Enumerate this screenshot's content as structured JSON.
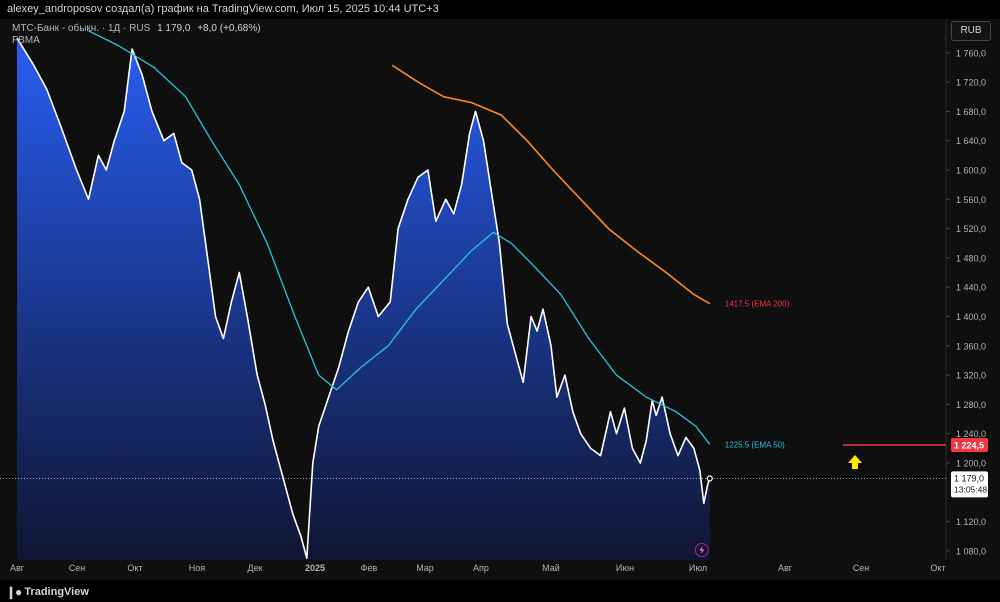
{
  "header": {
    "author_line": "alexey_androposov создал(а) график на TradingView.com, Июл 15, 2025 10:44 UTC+3"
  },
  "legend": {
    "symbol_line": "МТС-Банк - обыкн. · 1Д · RUS",
    "last_price": "1 179,0",
    "change": "+8,0 (+0,68%)",
    "ticker": "FBMA"
  },
  "currency_button": "RUB",
  "branding": {
    "name": "TradingView",
    "logo_icon": "tradingview-logo-icon"
  },
  "colors": {
    "price_line": "#ffffff",
    "area_top": "#2962ff",
    "area_bottom": "#0f1637",
    "ema50": "#26c6da",
    "ema200": "#ff8a1f",
    "annotation_line": "#f23645",
    "arrow": "#ffea00",
    "last_price_label": "#ffffff"
  },
  "chart_data": {
    "type": "area",
    "x_axis_labels": [
      "Авг",
      "Сен",
      "Окт",
      "Ноя",
      "Дек",
      "2025",
      "Фев",
      "Мар",
      "Апр",
      "Май",
      "Июн",
      "Июл",
      "Авг",
      "Сен",
      "Окт"
    ],
    "y_axis_ticks": [
      "1 760,0",
      "1 720,0",
      "1 680,0",
      "1 640,0",
      "1 600,0",
      "1 560,0",
      "1 520,0",
      "1 480,0",
      "1 440,0",
      "1 400,0",
      "1 360,0",
      "1 320,0",
      "1 280,0",
      "1 240,0",
      "1 200,0",
      "1 120,0",
      "1 080,0"
    ],
    "ylim": [
      1070,
      1785
    ],
    "grid": false,
    "series": [
      {
        "name": "МТС-Банк - обыкн.",
        "points": [
          [
            "2024-07-31",
            1780
          ],
          [
            "2024-08-08",
            1745
          ],
          [
            "2024-08-15",
            1710
          ],
          [
            "2024-08-22",
            1660
          ],
          [
            "2024-08-30",
            1600
          ],
          [
            "2024-09-05",
            1560
          ],
          [
            "2024-09-10",
            1620
          ],
          [
            "2024-09-14",
            1600
          ],
          [
            "2024-09-18",
            1640
          ],
          [
            "2024-09-23",
            1680
          ],
          [
            "2024-09-27",
            1765
          ],
          [
            "2024-10-02",
            1730
          ],
          [
            "2024-10-07",
            1680
          ],
          [
            "2024-10-13",
            1640
          ],
          [
            "2024-10-18",
            1650
          ],
          [
            "2024-10-22",
            1610
          ],
          [
            "2024-10-27",
            1600
          ],
          [
            "2024-10-31",
            1560
          ],
          [
            "2024-11-04",
            1480
          ],
          [
            "2024-11-08",
            1400
          ],
          [
            "2024-11-12",
            1370
          ],
          [
            "2024-11-16",
            1420
          ],
          [
            "2024-11-20",
            1460
          ],
          [
            "2024-11-24",
            1400
          ],
          [
            "2024-11-29",
            1320
          ],
          [
            "2024-12-03",
            1280
          ],
          [
            "2024-12-07",
            1230
          ],
          [
            "2024-12-12",
            1180
          ],
          [
            "2024-12-17",
            1130
          ],
          [
            "2024-12-21",
            1100
          ],
          [
            "2024-12-24",
            1070
          ],
          [
            "2024-12-27",
            1200
          ],
          [
            "2024-12-30",
            1250
          ],
          [
            "2025-01-04",
            1290
          ],
          [
            "2025-01-09",
            1330
          ],
          [
            "2025-01-14",
            1380
          ],
          [
            "2025-01-19",
            1420
          ],
          [
            "2025-01-24",
            1440
          ],
          [
            "2025-01-29",
            1400
          ],
          [
            "2025-02-04",
            1420
          ],
          [
            "2025-02-08",
            1520
          ],
          [
            "2025-02-13",
            1560
          ],
          [
            "2025-02-18",
            1590
          ],
          [
            "2025-02-23",
            1600
          ],
          [
            "2025-02-27",
            1530
          ],
          [
            "2025-03-04",
            1560
          ],
          [
            "2025-03-08",
            1540
          ],
          [
            "2025-03-12",
            1580
          ],
          [
            "2025-03-16",
            1650
          ],
          [
            "2025-03-19",
            1680
          ],
          [
            "2025-03-23",
            1640
          ],
          [
            "2025-03-27",
            1570
          ],
          [
            "2025-03-31",
            1500
          ],
          [
            "2025-04-04",
            1390
          ],
          [
            "2025-04-08",
            1350
          ],
          [
            "2025-04-12",
            1310
          ],
          [
            "2025-04-16",
            1400
          ],
          [
            "2025-04-19",
            1380
          ],
          [
            "2025-04-22",
            1410
          ],
          [
            "2025-04-26",
            1360
          ],
          [
            "2025-04-29",
            1290
          ],
          [
            "2025-05-03",
            1320
          ],
          [
            "2025-05-07",
            1270
          ],
          [
            "2025-05-11",
            1240
          ],
          [
            "2025-05-16",
            1220
          ],
          [
            "2025-05-21",
            1210
          ],
          [
            "2025-05-26",
            1270
          ],
          [
            "2025-05-29",
            1240
          ],
          [
            "2025-06-02",
            1275
          ],
          [
            "2025-06-06",
            1220
          ],
          [
            "2025-06-10",
            1200
          ],
          [
            "2025-06-13",
            1230
          ],
          [
            "2025-06-16",
            1285
          ],
          [
            "2025-06-18",
            1265
          ],
          [
            "2025-06-21",
            1290
          ],
          [
            "2025-06-25",
            1240
          ],
          [
            "2025-06-29",
            1210
          ],
          [
            "2025-07-03",
            1235
          ],
          [
            "2025-07-07",
            1220
          ],
          [
            "2025-07-10",
            1190
          ],
          [
            "2025-07-12",
            1145
          ],
          [
            "2025-07-14",
            1171
          ],
          [
            "2025-07-15",
            1179
          ]
        ]
      },
      {
        "name": "EMA 50",
        "label": "1225.5 (EMA 50)",
        "points": [
          [
            "2024-09-05",
            1790
          ],
          [
            "2024-09-20",
            1770
          ],
          [
            "2024-10-08",
            1740
          ],
          [
            "2024-10-24",
            1700
          ],
          [
            "2024-11-06",
            1640
          ],
          [
            "2024-11-20",
            1580
          ],
          [
            "2024-12-04",
            1500
          ],
          [
            "2024-12-18",
            1400
          ],
          [
            "2024-12-30",
            1320
          ],
          [
            "2025-01-08",
            1300
          ],
          [
            "2025-01-20",
            1330
          ],
          [
            "2025-02-03",
            1360
          ],
          [
            "2025-02-17",
            1410
          ],
          [
            "2025-03-03",
            1450
          ],
          [
            "2025-03-17",
            1490
          ],
          [
            "2025-03-28",
            1515
          ],
          [
            "2025-04-06",
            1500
          ],
          [
            "2025-04-17",
            1470
          ],
          [
            "2025-05-01",
            1430
          ],
          [
            "2025-05-15",
            1370
          ],
          [
            "2025-05-29",
            1320
          ],
          [
            "2025-06-13",
            1290
          ],
          [
            "2025-06-28",
            1270
          ],
          [
            "2025-07-08",
            1250
          ],
          [
            "2025-07-15",
            1225.5
          ]
        ]
      },
      {
        "name": "EMA 200",
        "label": "1417.5 (EMA 200)",
        "points": [
          [
            "2025-02-05",
            1743
          ],
          [
            "2025-02-18",
            1720
          ],
          [
            "2025-03-03",
            1700
          ],
          [
            "2025-03-17",
            1692
          ],
          [
            "2025-04-01",
            1675
          ],
          [
            "2025-04-14",
            1640
          ],
          [
            "2025-04-27",
            1600
          ],
          [
            "2025-05-11",
            1560
          ],
          [
            "2025-05-25",
            1520
          ],
          [
            "2025-06-08",
            1490
          ],
          [
            "2025-06-23",
            1460
          ],
          [
            "2025-07-07",
            1430
          ],
          [
            "2025-07-15",
            1417.5
          ]
        ]
      }
    ],
    "last_price_label": "1 179,0",
    "last_price_time": "13:05:48",
    "annotation_label": "1 224,5",
    "annotation_value": 1224.5
  }
}
